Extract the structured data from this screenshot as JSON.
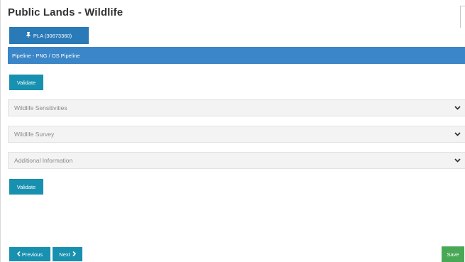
{
  "page": {
    "title": "Public Lands - Wildlife"
  },
  "pla_tab": {
    "label": "PLA (30673360)",
    "icon": "pin-icon"
  },
  "pipeline_bar": {
    "label": "Pipeline - PNG / OS Pipeline"
  },
  "actions": {
    "validate_label": "Validate",
    "previous_label": "Previous",
    "next_label": "Next",
    "save_label": "Save"
  },
  "sections": [
    {
      "label": "Wildlife Sensitivities",
      "icon": "chevron-down-icon"
    },
    {
      "label": "Wildlife Survey",
      "icon": "chevron-down-icon"
    },
    {
      "label": "Additional Information",
      "icon": "chevron-down-icon"
    }
  ],
  "colors": {
    "primary_blue": "#2a7ab8",
    "header_blue": "#3a86c8",
    "teal": "#1890b0",
    "save_green": "#49a855"
  }
}
